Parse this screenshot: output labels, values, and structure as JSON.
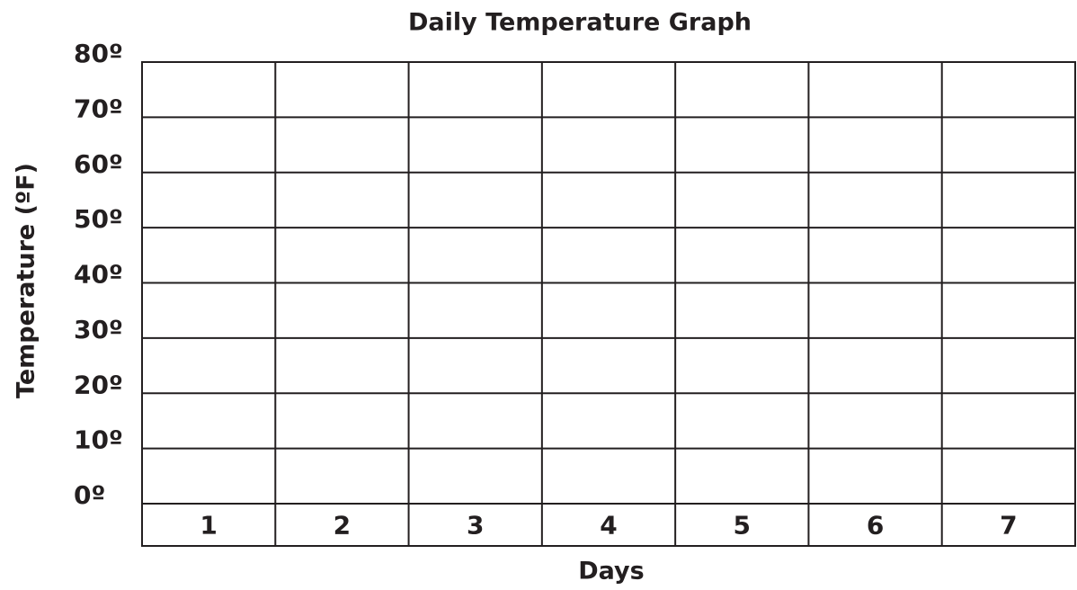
{
  "chart_data": {
    "type": "bar",
    "title": "Daily Temperature Graph",
    "x_label": "Days",
    "y_label": "Temperature (ºF)",
    "categories": [
      "1",
      "2",
      "3",
      "4",
      "5",
      "6",
      "7"
    ],
    "ylim": [
      0,
      80
    ],
    "yticks": [
      {
        "value": 0,
        "label": "0º"
      },
      {
        "value": 10,
        "label": "10º"
      },
      {
        "value": 20,
        "label": "20º"
      },
      {
        "value": 30,
        "label": "30º"
      },
      {
        "value": 40,
        "label": "40º"
      },
      {
        "value": 50,
        "label": "50º"
      },
      {
        "value": 60,
        "label": "60º"
      },
      {
        "value": 70,
        "label": "70º"
      },
      {
        "value": 80,
        "label": "80º"
      }
    ],
    "grid": true
  }
}
